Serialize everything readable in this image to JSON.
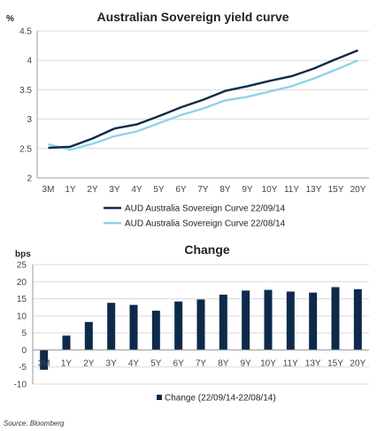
{
  "source_note": "Source: Bloomberg",
  "chart_data": [
    {
      "type": "line",
      "title": "Australian Sovereign yield curve",
      "ylabel": "%",
      "xlabel": "",
      "categories": [
        "3M",
        "1Y",
        "2Y",
        "3Y",
        "4Y",
        "5Y",
        "6Y",
        "7Y",
        "8Y",
        "9Y",
        "10Y",
        "11Y",
        "13Y",
        "15Y",
        "20Y"
      ],
      "ylim": [
        2,
        4.5
      ],
      "yticks": [
        2,
        2.5,
        3,
        3.5,
        4,
        4.5
      ],
      "ytick_labels": [
        "2",
        "2.5",
        "3",
        "3.5",
        "4",
        "4.5"
      ],
      "grid": true,
      "legend": "bottom",
      "series": [
        {
          "name": "AUD Australia Sovereign Curve 22/09/14",
          "color": "#0d2a4a",
          "values": [
            2.51,
            2.53,
            2.67,
            2.84,
            2.91,
            3.05,
            3.2,
            3.33,
            3.48,
            3.56,
            3.65,
            3.73,
            3.86,
            4.02,
            4.17
          ]
        },
        {
          "name": "AUD Australia Sovereign Curve 22/08/14",
          "color": "#8fd3ec",
          "values": [
            2.57,
            2.48,
            2.58,
            2.71,
            2.79,
            2.93,
            3.07,
            3.18,
            3.32,
            3.38,
            3.47,
            3.56,
            3.69,
            3.84,
            4.0
          ]
        }
      ]
    },
    {
      "type": "bar",
      "title": "Change",
      "ylabel": "bps",
      "xlabel": "",
      "categories": [
        "3M",
        "1Y",
        "2Y",
        "3Y",
        "4Y",
        "5Y",
        "6Y",
        "7Y",
        "8Y",
        "9Y",
        "10Y",
        "11Y",
        "13Y",
        "15Y",
        "20Y"
      ],
      "ylim": [
        -10,
        25
      ],
      "yticks": [
        -10,
        -5,
        0,
        5,
        10,
        15,
        20,
        25
      ],
      "ytick_labels": [
        "-10",
        "-5",
        "0",
        "5",
        "10",
        "15",
        "20",
        "25"
      ],
      "grid": true,
      "legend": "bottom",
      "series": [
        {
          "name": "Change (22/09/14-22/08/14)",
          "color": "#0d2a4a",
          "values": [
            -5.8,
            4.2,
            8.2,
            13.8,
            13.2,
            11.5,
            14.2,
            14.8,
            16.2,
            17.4,
            17.6,
            17.1,
            16.8,
            18.4,
            17.8
          ]
        }
      ]
    }
  ]
}
